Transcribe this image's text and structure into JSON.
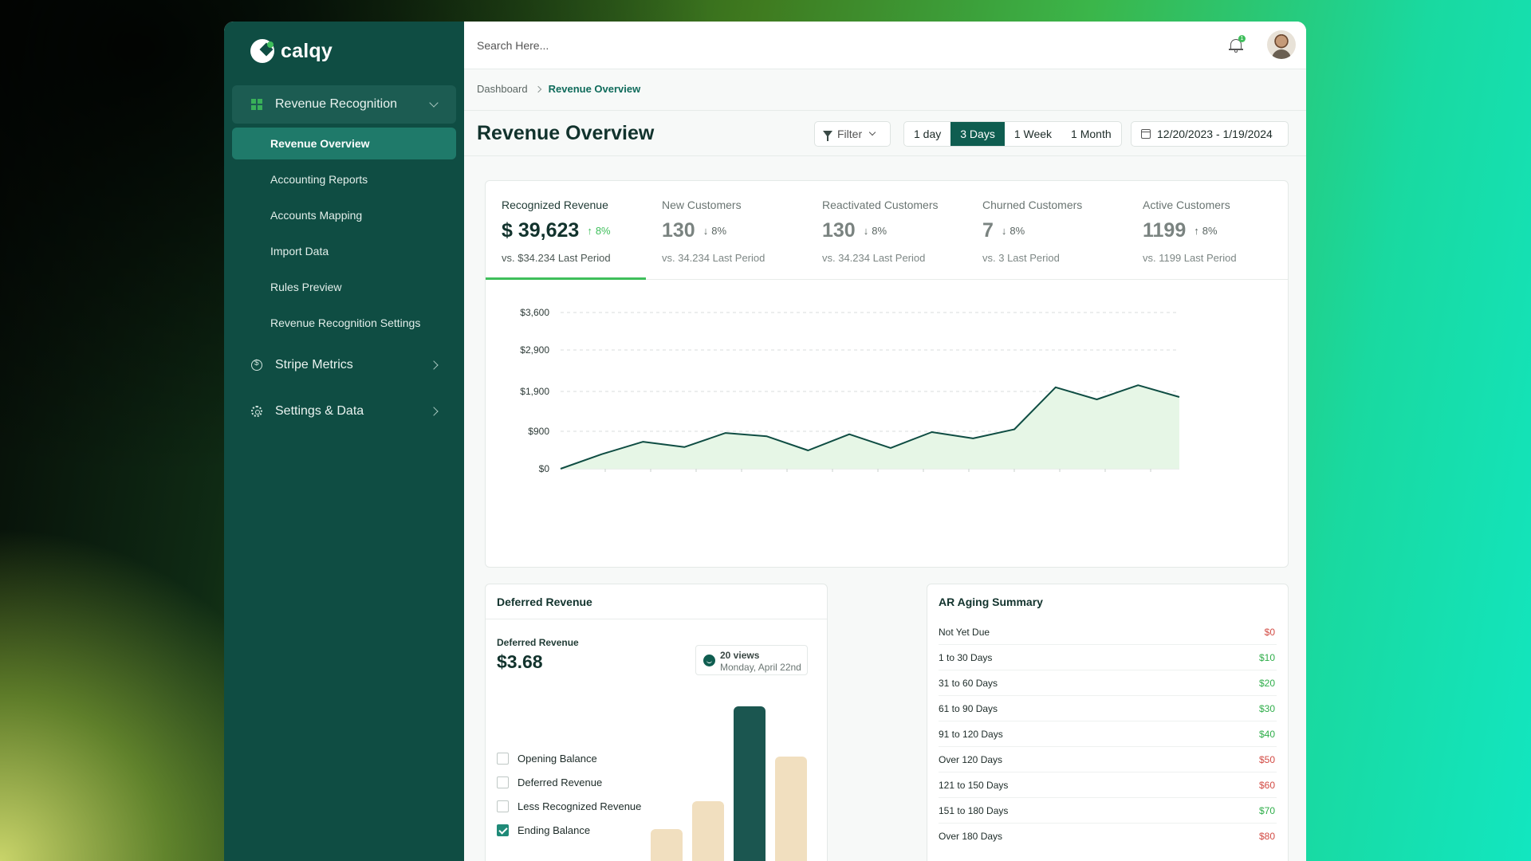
{
  "brand": {
    "name": "calqy"
  },
  "sidebar": {
    "groups": [
      {
        "label": "Revenue Recognition",
        "items": [
          {
            "label": "Revenue Overview"
          },
          {
            "label": "Accounting Reports"
          },
          {
            "label": "Accounts Mapping"
          },
          {
            "label": "Import Data"
          },
          {
            "label": "Rules Preview"
          },
          {
            "label": "Revenue Recognition Settings"
          }
        ]
      },
      {
        "label": "Stripe Metrics"
      },
      {
        "label": "Settings & Data"
      }
    ]
  },
  "topbar": {
    "search_placeholder": "Search Here...",
    "notification_count": "1"
  },
  "breadcrumb": {
    "parent": "Dashboard",
    "current": "Revenue Overview"
  },
  "header": {
    "title": "Revenue Overview",
    "filter_label": "Filter",
    "ranges": [
      "1 day",
      "3 Days",
      "1 Week",
      "1 Month"
    ],
    "active_range": "3 Days",
    "date_range": "12/20/2023 - 1/19/2024"
  },
  "kpis": [
    {
      "label": "Recognized Revenue",
      "value": "$ 39,623",
      "direction": "up",
      "change": "8%",
      "sub": "vs. $34.234 Last Period"
    },
    {
      "label": "New Customers",
      "value": "130",
      "direction": "down",
      "change": "8%",
      "sub": "vs. 34.234 Last Period"
    },
    {
      "label": "Reactivated Customers",
      "value": "130",
      "direction": "down",
      "change": "8%",
      "sub": "vs. 34.234 Last Period"
    },
    {
      "label": "Churned Customers",
      "value": "7",
      "direction": "down",
      "change": "8%",
      "sub": "vs. 3 Last Period"
    },
    {
      "label": "Active Customers",
      "value": "1199",
      "direction": "up",
      "change": "8%",
      "sub": "vs. 1199 Last Period"
    }
  ],
  "chart_data": {
    "type": "area",
    "y_tick_labels": [
      "$0",
      "$900",
      "$1,900",
      "$2,900",
      "$3,600"
    ],
    "y_tick_values": [
      0,
      900,
      1900,
      2900,
      3600
    ],
    "values": [
      0,
      350,
      650,
      520,
      860,
      780,
      440,
      830,
      500,
      880,
      730,
      950,
      2000,
      1700,
      2050,
      1760
    ],
    "ylim": [
      0,
      3600
    ],
    "grid": true,
    "line_color": "#0f4d43",
    "fill_color": "#e6f6e6"
  },
  "deferred": {
    "title": "Deferred Revenue",
    "label": "Deferred Revenue",
    "value": "$3.68",
    "views": "20 views",
    "views_date": "Monday, April 22nd",
    "legend": [
      {
        "label": "Opening Balance",
        "checked": false
      },
      {
        "label": "Deferred Revenue",
        "checked": false
      },
      {
        "label": "Less Recognized Revenue",
        "checked": false
      },
      {
        "label": "Ending Balance",
        "checked": true
      }
    ],
    "bars": [
      {
        "value": 0.24,
        "color": "#f1dfbf"
      },
      {
        "value": 0.41,
        "color": "#f1dfbf"
      },
      {
        "value": 1.0,
        "color": "#1b5650"
      },
      {
        "value": 0.69,
        "color": "#f1dfbf"
      }
    ]
  },
  "ar_aging": {
    "title": "AR Aging Summary",
    "rows": [
      {
        "label": "Not Yet Due",
        "value": "$0",
        "tone": "red"
      },
      {
        "label": "1 to 30 Days",
        "value": "$10",
        "tone": "green"
      },
      {
        "label": "31 to 60 Days",
        "value": "$20",
        "tone": "green"
      },
      {
        "label": "61 to 90 Days",
        "value": "$30",
        "tone": "green"
      },
      {
        "label": "91 to 120 Days",
        "value": "$40",
        "tone": "green"
      },
      {
        "label": "Over 120 Days",
        "value": "$50",
        "tone": "red"
      },
      {
        "label": "121 to 150 Days",
        "value": "$60",
        "tone": "red"
      },
      {
        "label": "151 to 180 Days",
        "value": "$70",
        "tone": "green"
      },
      {
        "label": "Over 180 Days",
        "value": "$80",
        "tone": "red"
      }
    ]
  }
}
